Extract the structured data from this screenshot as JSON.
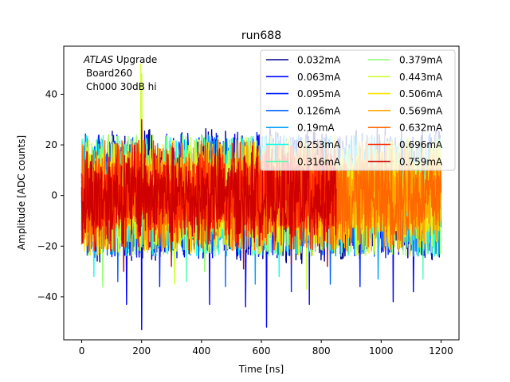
{
  "chart_data": {
    "type": "line",
    "title": "run688",
    "xlabel": "Time [ns]",
    "ylabel": "Amplitude [ADC counts]",
    "xlim": [
      -60,
      1260
    ],
    "ylim": [
      -57,
      59
    ],
    "xticks": [
      0,
      200,
      400,
      600,
      800,
      1000,
      1200
    ],
    "yticks": [
      -40,
      -20,
      0,
      20,
      40
    ],
    "grid": false,
    "legend_location": "upper right",
    "legend_columns": 2,
    "annotation": {
      "lines": [
        "ATLAS Upgrade",
        "Board260",
        "Ch000 30dB hi"
      ],
      "italic_word": "ATLAS",
      "location": "upper left"
    },
    "series": [
      {
        "name": "0.032mA",
        "color": "#00008f",
        "x_range": [
          0,
          1200
        ],
        "amplitude_range": [
          -27,
          27
        ],
        "spikes": []
      },
      {
        "name": "0.063mA",
        "color": "#0000ff",
        "x_range": [
          0,
          1200
        ],
        "amplitude_range": [
          -25,
          25
        ],
        "spikes": [
          [
            200,
            -53
          ],
          [
            617,
            -52
          ],
          [
            548,
            -44
          ],
          [
            150,
            -43
          ],
          [
            427,
            -43
          ],
          [
            760,
            -43
          ],
          [
            1040,
            -42
          ],
          [
            1108,
            -38
          ]
        ]
      },
      {
        "name": "0.095mA",
        "color": "#0020ff",
        "x_range": [
          0,
          1200
        ],
        "amplitude_range": [
          -25,
          25
        ],
        "spikes": [
          [
            260,
            -36
          ],
          [
            700,
            -38
          ],
          [
            930,
            -36
          ]
        ]
      },
      {
        "name": "0.126mA",
        "color": "#0060ff",
        "x_range": [
          0,
          1200
        ],
        "amplitude_range": [
          -24,
          24
        ],
        "spikes": [
          [
            120,
            -34
          ],
          [
            480,
            -36
          ],
          [
            830,
            -35
          ]
        ]
      },
      {
        "name": "0.19mA",
        "color": "#00a0ff",
        "x_range": [
          0,
          1200
        ],
        "amplitude_range": [
          -24,
          24
        ],
        "spikes": [
          [
            580,
            -35
          ],
          [
            990,
            -33
          ]
        ]
      },
      {
        "name": "0.253mA",
        "color": "#10ffef",
        "x_range": [
          0,
          1200
        ],
        "amplitude_range": [
          -24,
          24
        ],
        "spikes": [
          [
            40,
            -32
          ],
          [
            660,
            -32
          ]
        ]
      },
      {
        "name": "0.316mA",
        "color": "#50ffaf",
        "x_range": [
          0,
          1200
        ],
        "amplitude_range": [
          -24,
          24
        ],
        "spikes": [
          [
            350,
            -34
          ],
          [
            1140,
            -33
          ]
        ]
      },
      {
        "name": "0.379mA",
        "color": "#90ff70",
        "x_range": [
          0,
          1200
        ],
        "amplitude_range": [
          -24,
          24
        ],
        "spikes": [
          [
            70,
            -36
          ],
          [
            410,
            -30
          ]
        ]
      },
      {
        "name": "0.443mA",
        "color": "#cfff30",
        "x_range": [
          0,
          1200
        ],
        "amplitude_range": [
          -24,
          24
        ],
        "spikes": [
          [
            197,
            52
          ],
          [
            200,
            48
          ],
          [
            310,
            -35
          ],
          [
            752,
            -37
          ]
        ]
      },
      {
        "name": "0.506mA",
        "color": "#ffe500",
        "x_range": [
          0,
          1200
        ],
        "amplitude_range": [
          -24,
          22
        ],
        "spikes": []
      },
      {
        "name": "0.569mA",
        "color": "#ffa500",
        "x_range": [
          0,
          1200
        ],
        "amplitude_range": [
          -22,
          22
        ],
        "spikes": []
      },
      {
        "name": "0.632mA",
        "color": "#ff6800",
        "x_range": [
          0,
          1200
        ],
        "amplitude_range": [
          -22,
          22
        ],
        "spikes": []
      },
      {
        "name": "0.696mA",
        "color": "#ff2a00",
        "x_range": [
          0,
          850
        ],
        "amplitude_range": [
          -22,
          22
        ],
        "spikes": []
      },
      {
        "name": "0.759mA",
        "color": "#cf0000",
        "x_range": [
          0,
          850
        ],
        "amplitude_range": [
          -20,
          20
        ],
        "spikes": [
          [
            200,
            30
          ],
          [
            140,
            -30
          ],
          [
            300,
            -28
          ],
          [
            540,
            -29
          ],
          [
            700,
            -27
          ],
          [
            820,
            -28
          ]
        ]
      }
    ]
  }
}
